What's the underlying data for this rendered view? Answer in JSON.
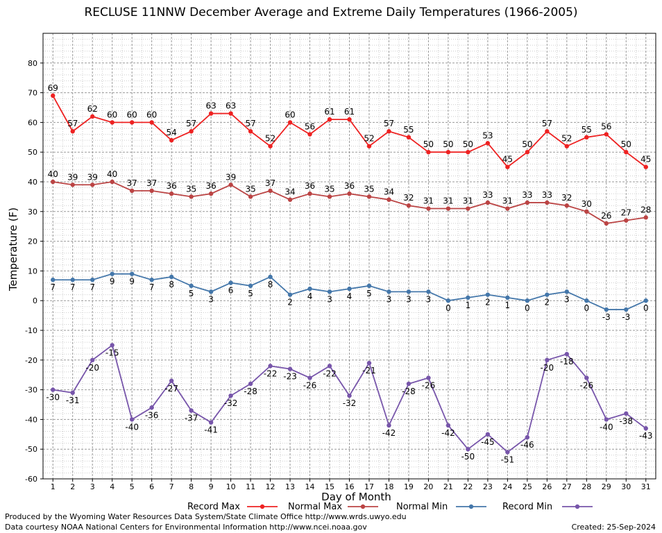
{
  "chart_data": {
    "type": "line",
    "title": "RECLUSE 11NNW December Average and Extreme Daily Temperatures (1966-2005)",
    "xlabel": "Day of Month",
    "ylabel": "Temperature (F)",
    "ylim": [
      -60,
      90
    ],
    "yticks": [
      -60,
      -50,
      -40,
      -30,
      -20,
      -10,
      0,
      10,
      20,
      30,
      40,
      50,
      60,
      70,
      80
    ],
    "xlim": [
      0.5,
      31.5
    ],
    "x": [
      1,
      2,
      3,
      4,
      5,
      6,
      7,
      8,
      9,
      10,
      11,
      12,
      13,
      14,
      15,
      16,
      17,
      18,
      19,
      20,
      21,
      22,
      23,
      24,
      25,
      26,
      27,
      28,
      29,
      30,
      31
    ],
    "grid": true,
    "legend_position": "bottom",
    "series": [
      {
        "name": "Record Max",
        "color": "#ee2222",
        "label_pos": "above",
        "values": [
          69,
          57,
          62,
          60,
          60,
          60,
          54,
          57,
          63,
          63,
          57,
          52,
          60,
          56,
          61,
          61,
          52,
          57,
          55,
          50,
          50,
          50,
          53,
          45,
          50,
          57,
          52,
          55,
          56,
          50,
          45
        ]
      },
      {
        "name": "Normal Max",
        "color": "#bb4444",
        "label_pos": "above",
        "values": [
          40,
          39,
          39,
          40,
          37,
          37,
          36,
          35,
          36,
          39,
          35,
          37,
          34,
          36,
          35,
          36,
          35,
          34,
          32,
          31,
          31,
          31,
          33,
          31,
          33,
          33,
          32,
          30,
          26,
          27,
          28
        ]
      },
      {
        "name": "Normal Min",
        "color": "#4477aa",
        "label_pos": "below",
        "values": [
          7,
          7,
          7,
          9,
          9,
          7,
          8,
          5,
          3,
          6,
          5,
          8,
          2,
          4,
          3,
          4,
          5,
          3,
          3,
          3,
          0,
          1,
          2,
          1,
          0,
          2,
          3,
          0,
          -3,
          -3,
          0
        ]
      },
      {
        "name": "Record Min",
        "color": "#7755aa",
        "label_pos": "below",
        "values": [
          -30,
          -31,
          -20,
          -15,
          -40,
          -36,
          -27,
          -37,
          -41,
          -32,
          -28,
          -22,
          -23,
          -26,
          -22,
          -32,
          -21,
          -42,
          -28,
          -26,
          -42,
          -50,
          -45,
          -51,
          -46,
          -20,
          -18,
          -26,
          -40,
          -38,
          -43
        ]
      }
    ]
  },
  "footer": {
    "line1": "Produced by the Wyoming Water Resources Data System/State Climate Office http://www.wrds.uwyo.edu",
    "line2": "Data courtesy NOAA National Centers for Environmental Information http://www.ncei.noaa.gov",
    "created": "Created:  25-Sep-2024"
  }
}
